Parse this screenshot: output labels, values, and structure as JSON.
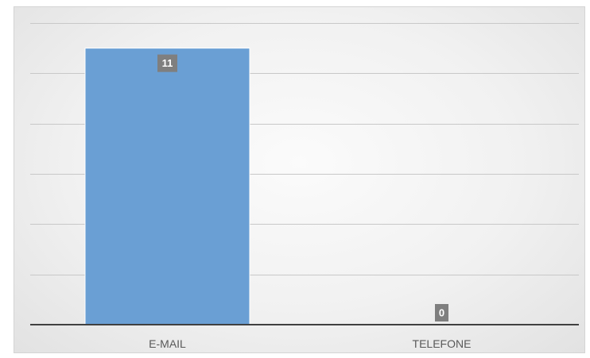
{
  "chart_data": {
    "type": "bar",
    "categories": [
      "E-MAIL",
      "TELEFONE"
    ],
    "values": [
      11,
      0
    ],
    "data_labels": [
      "11",
      "0"
    ],
    "title": "",
    "xlabel": "",
    "ylabel": "",
    "ylim": [
      0,
      12
    ],
    "grid": true,
    "legend": "none",
    "bar_color": "#6a9fd4",
    "label_box_color": "#7f7f7f"
  }
}
